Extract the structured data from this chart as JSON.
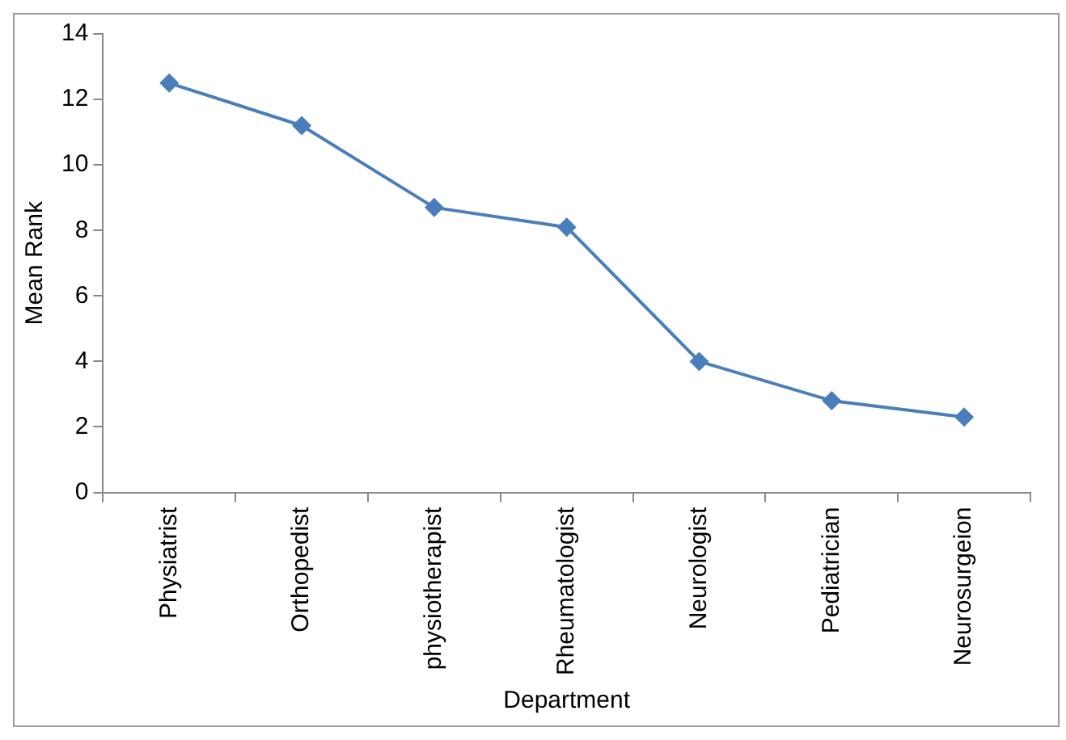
{
  "chart_data": {
    "type": "line",
    "xlabel": "Department",
    "ylabel": "Mean Rank",
    "categories": [
      "Physiatrist",
      "Orthopedist",
      "physiotherapist",
      "Rheumatologist",
      "Neurologist",
      "Pediatrician",
      "Neurosurgeion"
    ],
    "series": [
      {
        "color": "#4a7ebb",
        "values": [
          12.5,
          11.2,
          8.7,
          8.1,
          4.0,
          2.8,
          2.3
        ]
      }
    ],
    "ylim": [
      0,
      14
    ],
    "yticks": [
      0,
      2,
      4,
      6,
      8,
      10,
      12,
      14
    ],
    "grid": false,
    "legend": false,
    "marker": "diamond",
    "line_style": "solid"
  }
}
